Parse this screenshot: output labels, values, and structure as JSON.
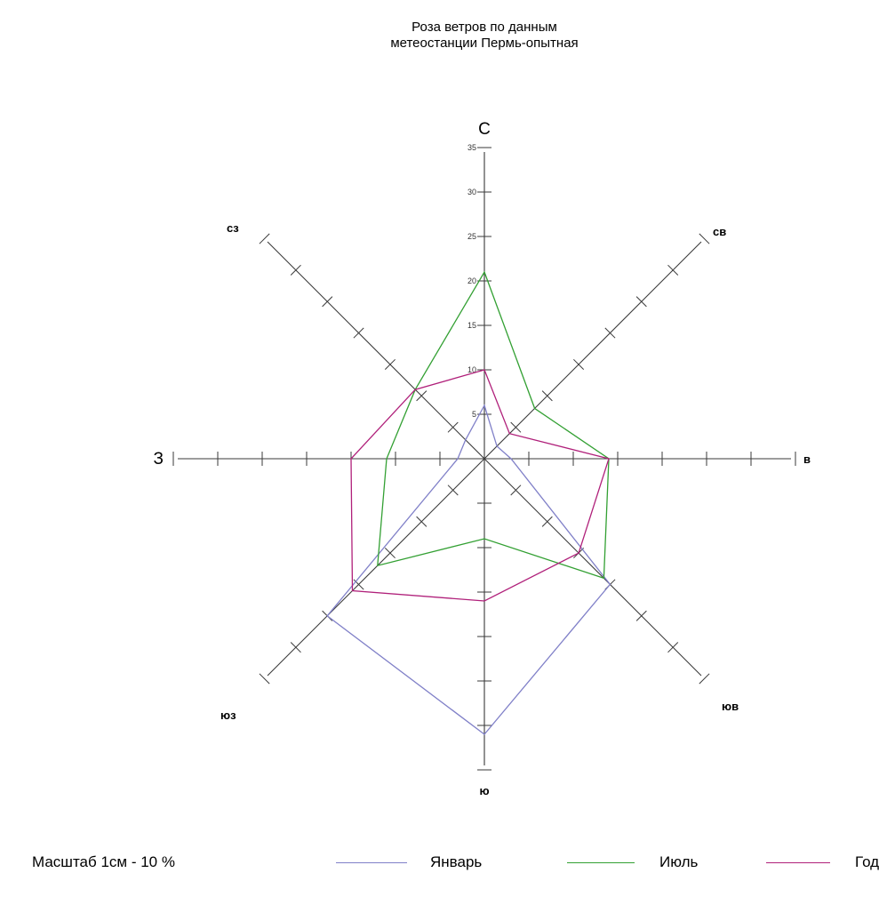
{
  "chart_data": {
    "type": "radar",
    "title": [
      "Роза ветров по данным",
      "метеостанции Пермь-опытная"
    ],
    "directions": [
      "С",
      "СВ",
      "В",
      "ЮВ",
      "Ю",
      "ЮЗ",
      "З",
      "СЗ"
    ],
    "direction_labels": [
      "С",
      "св",
      "в",
      "юв",
      "ю",
      "юз",
      "З",
      "сз"
    ],
    "axis_max": 35,
    "tick_step": 5,
    "tick_labels": [
      "5",
      "10",
      "15",
      "20",
      "25",
      "30",
      "35"
    ],
    "series": [
      {
        "name": "Январь",
        "color": "#8080c8",
        "values": [
          6,
          2,
          3,
          20,
          31,
          25,
          3,
          3
        ]
      },
      {
        "name": "Июль",
        "color": "#33a033",
        "values": [
          21,
          8,
          14,
          19,
          9,
          17,
          11,
          11
        ]
      },
      {
        "name": "Год",
        "color": "#b0207a",
        "values": [
          10,
          4,
          14,
          15,
          16,
          21,
          15,
          11
        ]
      }
    ]
  },
  "footer": {
    "scale_note": "Масштаб 1см - 10 %"
  }
}
